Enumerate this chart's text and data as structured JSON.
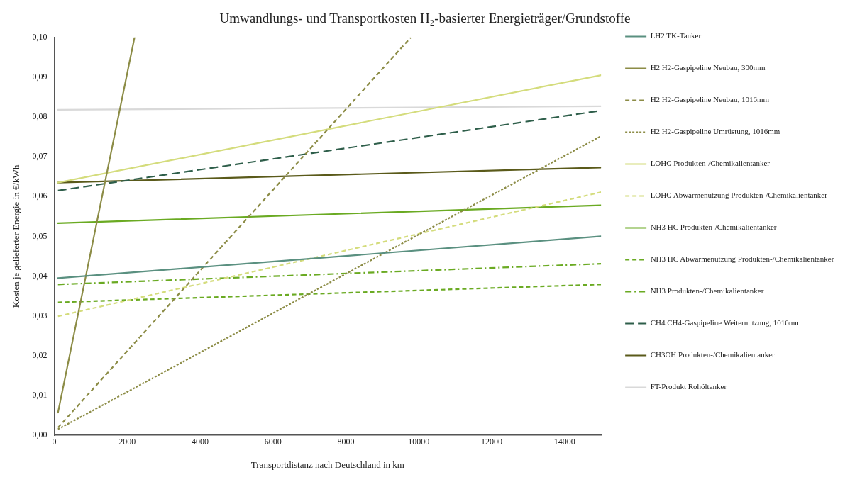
{
  "chart_data": {
    "type": "line",
    "title": "Umwandlungs- und Transportkosten H₂-basierter Energieträger/Grundstoffe",
    "xlabel": "Transportdistanz nach Deutschland in km",
    "ylabel": "Kosten je gelieferter Energie in €/kWh",
    "xlim": [
      0,
      15000
    ],
    "xticks": [
      0,
      2000,
      4000,
      6000,
      8000,
      10000,
      12000,
      14000
    ],
    "ylim": [
      0,
      0.1
    ],
    "yticks": [
      {
        "value": 0,
        "label": "0,00"
      },
      {
        "value": 0.01,
        "label": "0,01"
      },
      {
        "value": 0.02,
        "label": "0,02"
      },
      {
        "value": 0.03,
        "label": "0,03"
      },
      {
        "value": 0.04,
        "label": "0,04"
      },
      {
        "value": 0.05,
        "label": "0,05"
      },
      {
        "value": 0.06,
        "label": "0,06"
      },
      {
        "value": 0.07,
        "label": "0,07"
      },
      {
        "value": 0.08,
        "label": "0,08"
      },
      {
        "value": 0.09,
        "label": "0,09"
      },
      {
        "value": 0.1,
        "label": "0,10"
      }
    ],
    "grid": false,
    "legend": "right",
    "marker": "none",
    "series": [
      {
        "name": "LH2 TK-Tanker",
        "color": "#5a9080",
        "line_style": "solid",
        "x": [
          100,
          15000
        ],
        "values": [
          0.0395,
          0.05
        ]
      },
      {
        "name": "H2 H2-Gaspipeline Neubau, 300mm",
        "color": "#8c8c46",
        "line_style": "solid",
        "x": [
          100,
          2200
        ],
        "values": [
          0.0057,
          0.1
        ]
      },
      {
        "name": "H2 H2-Gaspipeline Neubau, 1016mm",
        "color": "#8c8c46",
        "line_style": "dashed",
        "x": [
          100,
          9780
        ],
        "values": [
          0.0019,
          0.1
        ]
      },
      {
        "name": "H2 H2-Gaspipeline Umrüstung, 1016mm",
        "color": "#8c8c46",
        "line_style": "dotted",
        "x": [
          100,
          15000
        ],
        "values": [
          0.0015,
          0.0752
        ]
      },
      {
        "name": "LOHC Produkten-/Chemikalientanker",
        "color": "#d4dc7c",
        "line_style": "solid",
        "x": [
          100,
          15000
        ],
        "values": [
          0.0635,
          0.0905
        ]
      },
      {
        "name": "LOHC Abwärmenutzung Produkten-/Chemikalientanker",
        "color": "#d4dc7c",
        "line_style": "dashed",
        "x": [
          100,
          15000
        ],
        "values": [
          0.0299,
          0.0611
        ]
      },
      {
        "name": "NH3 HC Produkten-/Chemikalientanker",
        "color": "#6aaa22",
        "line_style": "solid",
        "x": [
          100,
          15000
        ],
        "values": [
          0.0533,
          0.0578
        ]
      },
      {
        "name": "NH3 HC Abwärmenutzung Produkten-/Chemikalientanker",
        "color": "#6aaa22",
        "line_style": "dashed",
        "x": [
          100,
          15000
        ],
        "values": [
          0.0334,
          0.0379
        ]
      },
      {
        "name": "NH3 Produkten-/Chemikalientanker",
        "color": "#6aaa22",
        "line_style": "dashdot",
        "x": [
          100,
          15000
        ],
        "values": [
          0.0379,
          0.0431
        ]
      },
      {
        "name": "CH4 CH4-Gaspipeline Weiternutzung, 1016mm",
        "color": "#2e5e4a",
        "line_style": "longdash",
        "x": [
          100,
          15000
        ],
        "values": [
          0.0615,
          0.0816
        ]
      },
      {
        "name": "CH3OH Produkten-/Chemikalientanker",
        "color": "#5a5a1a",
        "line_style": "solid",
        "x": [
          100,
          15000
        ],
        "values": [
          0.0635,
          0.0673
        ]
      },
      {
        "name": "FT-Produkt Rohöltanker",
        "color": "#d9d9d9",
        "line_style": "solid",
        "x": [
          100,
          15000
        ],
        "values": [
          0.0818,
          0.0827
        ]
      }
    ]
  }
}
